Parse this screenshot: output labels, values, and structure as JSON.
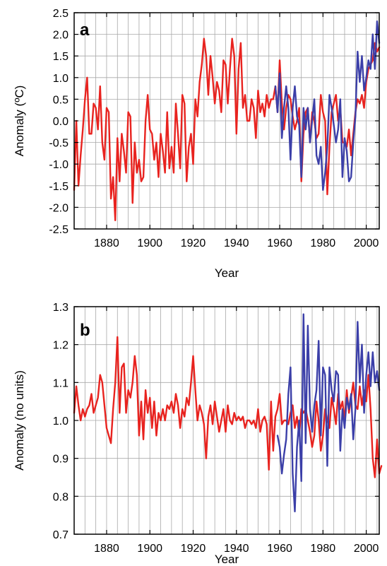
{
  "chart_data": [
    {
      "type": "line",
      "panel_label": "a",
      "xlabel": "Year",
      "ylabel": "Anomaly (ºC)",
      "xlim": [
        1865,
        2006
      ],
      "ylim": [
        -2.5,
        2.5
      ],
      "x_ticks": [
        1880,
        1900,
        1920,
        1940,
        1960,
        1980,
        2000
      ],
      "x_tick_labels": [
        "1880",
        "1900",
        "1920",
        "1940",
        "1960",
        "1980",
        "2000"
      ],
      "y_ticks": [
        -2.5,
        -2.0,
        -1.5,
        -1.0,
        -0.5,
        0.0,
        0.5,
        1.0,
        1.5,
        2.0,
        2.5
      ],
      "y_tick_labels": [
        "-2.5",
        "-2.0",
        "-1.5",
        "-1.0",
        "-0.5",
        "0.0",
        "0.5",
        "1.0",
        "1.5",
        "2.0",
        "2.5"
      ],
      "x_grid_every": 5,
      "y_grid_every": 0.5,
      "grid": true,
      "series": [
        {
          "color": "#e8231f",
          "start_year": 1865,
          "values": [
            -1.6,
            0.0,
            -1.5,
            -0.8,
            -0.2,
            0.5,
            1.0,
            -0.3,
            -0.3,
            0.4,
            0.3,
            -0.2,
            0.8,
            -0.5,
            -0.9,
            0.3,
            0.2,
            -1.8,
            -1.3,
            -2.3,
            -0.4,
            -1.4,
            -0.3,
            -0.7,
            -1.2,
            0.2,
            0.1,
            -1.9,
            -0.5,
            -1.2,
            -0.9,
            -1.4,
            -1.3,
            0.0,
            0.6,
            -0.2,
            -0.3,
            -0.9,
            -0.5,
            -1.3,
            -0.3,
            -0.7,
            -1.2,
            0.2,
            -1.1,
            -0.6,
            -1.2,
            0.4,
            -0.3,
            -1.1,
            0.6,
            0.4,
            -1.4,
            -0.6,
            -0.3,
            -1.0,
            0.5,
            0.1,
            0.9,
            1.3,
            1.9,
            1.5,
            0.6,
            1.5,
            1.0,
            0.4,
            0.9,
            0.7,
            0.2,
            1.4,
            1.3,
            0.4,
            1.2,
            1.9,
            1.5,
            -0.3,
            1.2,
            1.8,
            0.3,
            0.6,
            0.0,
            0.0,
            0.5,
            0.3,
            -0.4,
            0.7,
            0.2,
            0.4,
            0.1,
            0.6,
            0.3,
            0.5,
            0.5,
            0.8,
            0.2,
            1.4,
            0.4,
            -0.2,
            0.3,
            0.6,
            0.5,
            0.1,
            -0.2,
            0.0,
            0.3,
            -1.4,
            -0.3,
            0.2,
            0.3,
            -0.5,
            0.2,
            0.0,
            -0.4,
            -0.3,
            0.6,
            0.2,
            0.0,
            -1.7,
            -0.6,
            0.2,
            0.4,
            0.6,
            0.0,
            0.3,
            -0.5,
            -0.5,
            -0.6,
            -0.2,
            -0.8,
            -0.3,
            0.2,
            0.5,
            0.4,
            0.6,
            0.3,
            0.9,
            1.2,
            1.3,
            1.4,
            1.8,
            1.6,
            1.7
          ]
        },
        {
          "color": "#3b3fa8",
          "start_year": 1958,
          "values": [
            0.8,
            0.2,
            1.1,
            -0.4,
            0.3,
            0.8,
            0.3,
            -0.9,
            0.3,
            0.8,
            0.1,
            -0.1,
            -1.3,
            0.3,
            -0.2,
            0.3,
            -0.5,
            0.0,
            0.5,
            -0.8,
            -1.0,
            -0.6,
            -1.6,
            -1.2,
            -0.6,
            0.6,
            0.3,
            -0.1,
            -0.5,
            -0.2,
            0.5,
            -1.3,
            -0.4,
            -0.7,
            -1.4,
            -1.3,
            -0.5,
            0.1,
            1.6,
            0.9,
            1.5,
            0.7,
            1.0,
            1.4,
            1.2,
            2.0,
            1.2,
            2.3,
            1.8
          ]
        }
      ]
    },
    {
      "type": "line",
      "panel_label": "b",
      "xlabel": "Year",
      "ylabel": "Anomaly (no units)",
      "xlim": [
        1865,
        2006
      ],
      "ylim": [
        0.7,
        1.3
      ],
      "x_ticks": [
        1880,
        1900,
        1920,
        1940,
        1960,
        1980,
        2000
      ],
      "x_tick_labels": [
        "1880",
        "1900",
        "1920",
        "1940",
        "1960",
        "1980",
        "2000"
      ],
      "y_ticks": [
        0.7,
        0.8,
        0.9,
        1.0,
        1.1,
        1.2,
        1.3
      ],
      "y_tick_labels": [
        "0.7",
        "0.8",
        "0.9",
        "1.0",
        "1.1",
        "1.2",
        "1.3"
      ],
      "x_grid_every": 5,
      "y_grid_every": 0.1,
      "grid": true,
      "series": [
        {
          "color": "#e8231f",
          "start_year": 1865,
          "values": [
            1.02,
            1.09,
            1.04,
            1.0,
            1.03,
            1.01,
            1.03,
            1.04,
            1.07,
            1.02,
            1.04,
            1.06,
            1.12,
            1.1,
            1.04,
            0.98,
            0.96,
            0.94,
            1.03,
            1.1,
            1.22,
            1.02,
            1.14,
            1.15,
            1.02,
            1.08,
            1.06,
            1.1,
            1.17,
            1.12,
            0.96,
            1.05,
            0.95,
            1.08,
            1.02,
            1.06,
            0.98,
            1.05,
            0.96,
            1.02,
            1.0,
            1.03,
            1.0,
            1.04,
            1.03,
            1.05,
            1.02,
            1.07,
            1.04,
            0.98,
            1.03,
            1.01,
            1.06,
            1.04,
            1.1,
            1.17,
            1.08,
            1.0,
            1.04,
            1.02,
            0.99,
            0.9,
            1.01,
            1.04,
            0.99,
            1.05,
            1.01,
            0.97,
            1.0,
            1.03,
            0.97,
            1.04,
            1.0,
            0.99,
            1.02,
            1.0,
            1.01,
            1.0,
            1.01,
            0.98,
            1.0,
            1.0,
            0.99,
            1.0,
            0.98,
            1.03,
            0.97,
            1.0,
            1.01,
            0.99,
            0.87,
            1.05,
            0.92,
            1.01,
            1.03,
            1.07,
            0.99,
            1.0,
            1.0,
            0.99,
            1.02,
            1.04,
            0.98,
            1.01,
            0.96,
            1.03,
            1.02,
            1.03,
            1.0,
            0.97,
            0.93,
            0.96,
            1.05,
            1.0,
            0.92,
            0.96,
            1.03,
            1.0,
            0.98,
            1.06,
            1.03,
            0.99,
            1.07,
            1.03,
            1.05,
            1.0,
            1.08,
            1.02,
            1.06,
            1.1,
            1.04,
            1.03,
            1.09,
            1.04,
            1.08,
            1.05,
            1.12,
            1.03,
            0.9,
            0.85,
            0.95,
            0.86,
            0.88
          ]
        },
        {
          "color": "#3b3fa8",
          "start_year": 1959,
          "values": [
            0.96,
            0.93,
            0.86,
            0.91,
            0.95,
            1.07,
            1.14,
            0.86,
            0.76,
            0.93,
            1.0,
            0.84,
            1.28,
            0.94,
            1.25,
            1.03,
            0.97,
            1.04,
            1.08,
            1.21,
            0.96,
            1.14,
            1.12,
            0.88,
            1.14,
            1.08,
            1.05,
            1.13,
            1.12,
            0.92,
            1.03,
            0.98,
            1.06,
            1.03,
            1.07,
            0.95,
            1.03,
            1.26,
            1.1,
            1.2,
            1.02,
            1.12,
            1.18,
            1.09,
            1.18,
            1.1,
            1.13,
            1.08
          ]
        }
      ]
    }
  ]
}
